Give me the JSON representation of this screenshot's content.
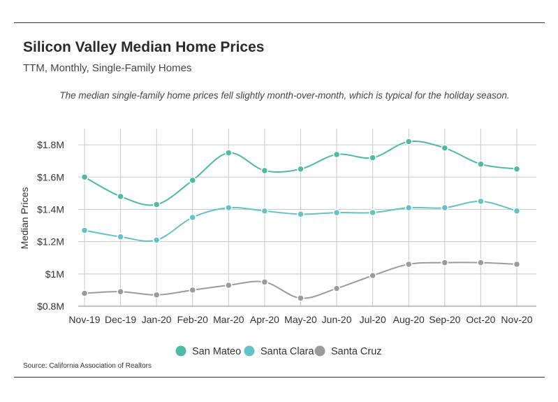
{
  "header": {
    "title": "Silicon Valley Median Home Prices",
    "subtitle": "TTM, Monthly, Single-Family Homes",
    "note": "The median single-family home prices fell slightly month-over-month, which is typical for the holiday season."
  },
  "footer": {
    "source": "Source:  California Association of Realtors"
  },
  "chart_data": {
    "type": "line",
    "title": "Silicon Valley Median Home Prices",
    "subtitle": "TTM, Monthly, Single-Family Homes",
    "xlabel": "",
    "ylabel": "Median Prices",
    "categories": [
      "Nov-19",
      "Dec-19",
      "Jan-20",
      "Feb-20",
      "Mar-20",
      "Apr-20",
      "May-20",
      "Jun-20",
      "Jul-20",
      "Aug-20",
      "Sep-20",
      "Oct-20",
      "Nov-20"
    ],
    "ylim": [
      0.8,
      1.9
    ],
    "yticks": [
      0.8,
      1.0,
      1.2,
      1.4,
      1.6,
      1.8
    ],
    "ytick_labels": [
      "$0.8M",
      "$1M",
      "$1.2M",
      "$1.4M",
      "$1.6M",
      "$1.8M"
    ],
    "grid": "horizontal and vertical",
    "legend_position": "bottom-center",
    "series": [
      {
        "name": "San Mateo",
        "color": "#4dbaa3",
        "values": [
          1.6,
          1.48,
          1.43,
          1.58,
          1.75,
          1.64,
          1.65,
          1.74,
          1.72,
          1.82,
          1.78,
          1.68,
          1.65
        ]
      },
      {
        "name": "Santa Clara",
        "color": "#62c2c8",
        "values": [
          1.27,
          1.23,
          1.21,
          1.35,
          1.41,
          1.39,
          1.37,
          1.38,
          1.38,
          1.41,
          1.41,
          1.45,
          1.39
        ]
      },
      {
        "name": "Santa Cruz",
        "color": "#9b9b9b",
        "values": [
          0.88,
          0.89,
          0.87,
          0.9,
          0.93,
          0.95,
          0.85,
          0.91,
          0.99,
          1.06,
          1.07,
          1.07,
          1.06
        ]
      }
    ]
  }
}
